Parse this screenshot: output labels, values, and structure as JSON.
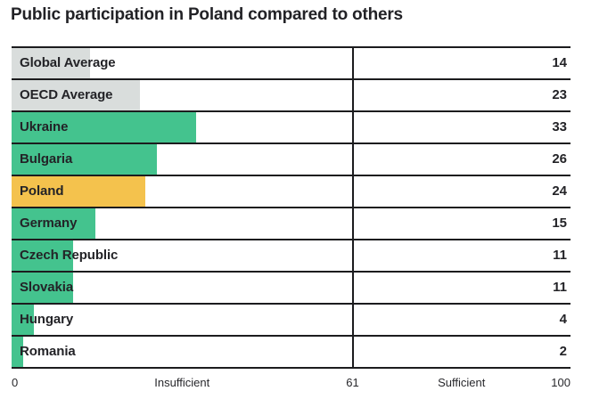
{
  "chart_data": {
    "type": "bar",
    "orientation": "horizontal",
    "title": "Public participation in Poland compared to others",
    "categories": [
      "Global Average",
      "OECD Average",
      "Ukraine",
      "Bulgaria",
      "Poland",
      "Germany",
      "Czech Republic",
      "Slovakia",
      "Hungary",
      "Romania"
    ],
    "values": [
      14,
      23,
      33,
      26,
      24,
      15,
      11,
      11,
      4,
      2
    ],
    "bar_colors": [
      "#d9dddc",
      "#d9dddc",
      "#44c38e",
      "#44c38e",
      "#f4c24d",
      "#44c38e",
      "#44c38e",
      "#44c38e",
      "#44c38e",
      "#44c38e"
    ],
    "xlim": [
      0,
      100
    ],
    "threshold": 61,
    "x_axis_labels": [
      {
        "text": "0",
        "position": 0,
        "align": "left"
      },
      {
        "text": "Insufficient",
        "position": 30.5,
        "align": "center"
      },
      {
        "text": "61",
        "position": 61,
        "align": "center"
      },
      {
        "text": "Sufficient",
        "position": 80.5,
        "align": "center"
      },
      {
        "text": "100",
        "position": 100,
        "align": "right"
      }
    ],
    "grid": "row-borders",
    "legend": "none"
  },
  "colors": {
    "bar_green": "#44c38e",
    "bar_yellow": "#f4c24d",
    "bar_gray": "#d9dddc",
    "line": "#1c1c1e",
    "text": "#232327",
    "background": "#ffffff"
  }
}
